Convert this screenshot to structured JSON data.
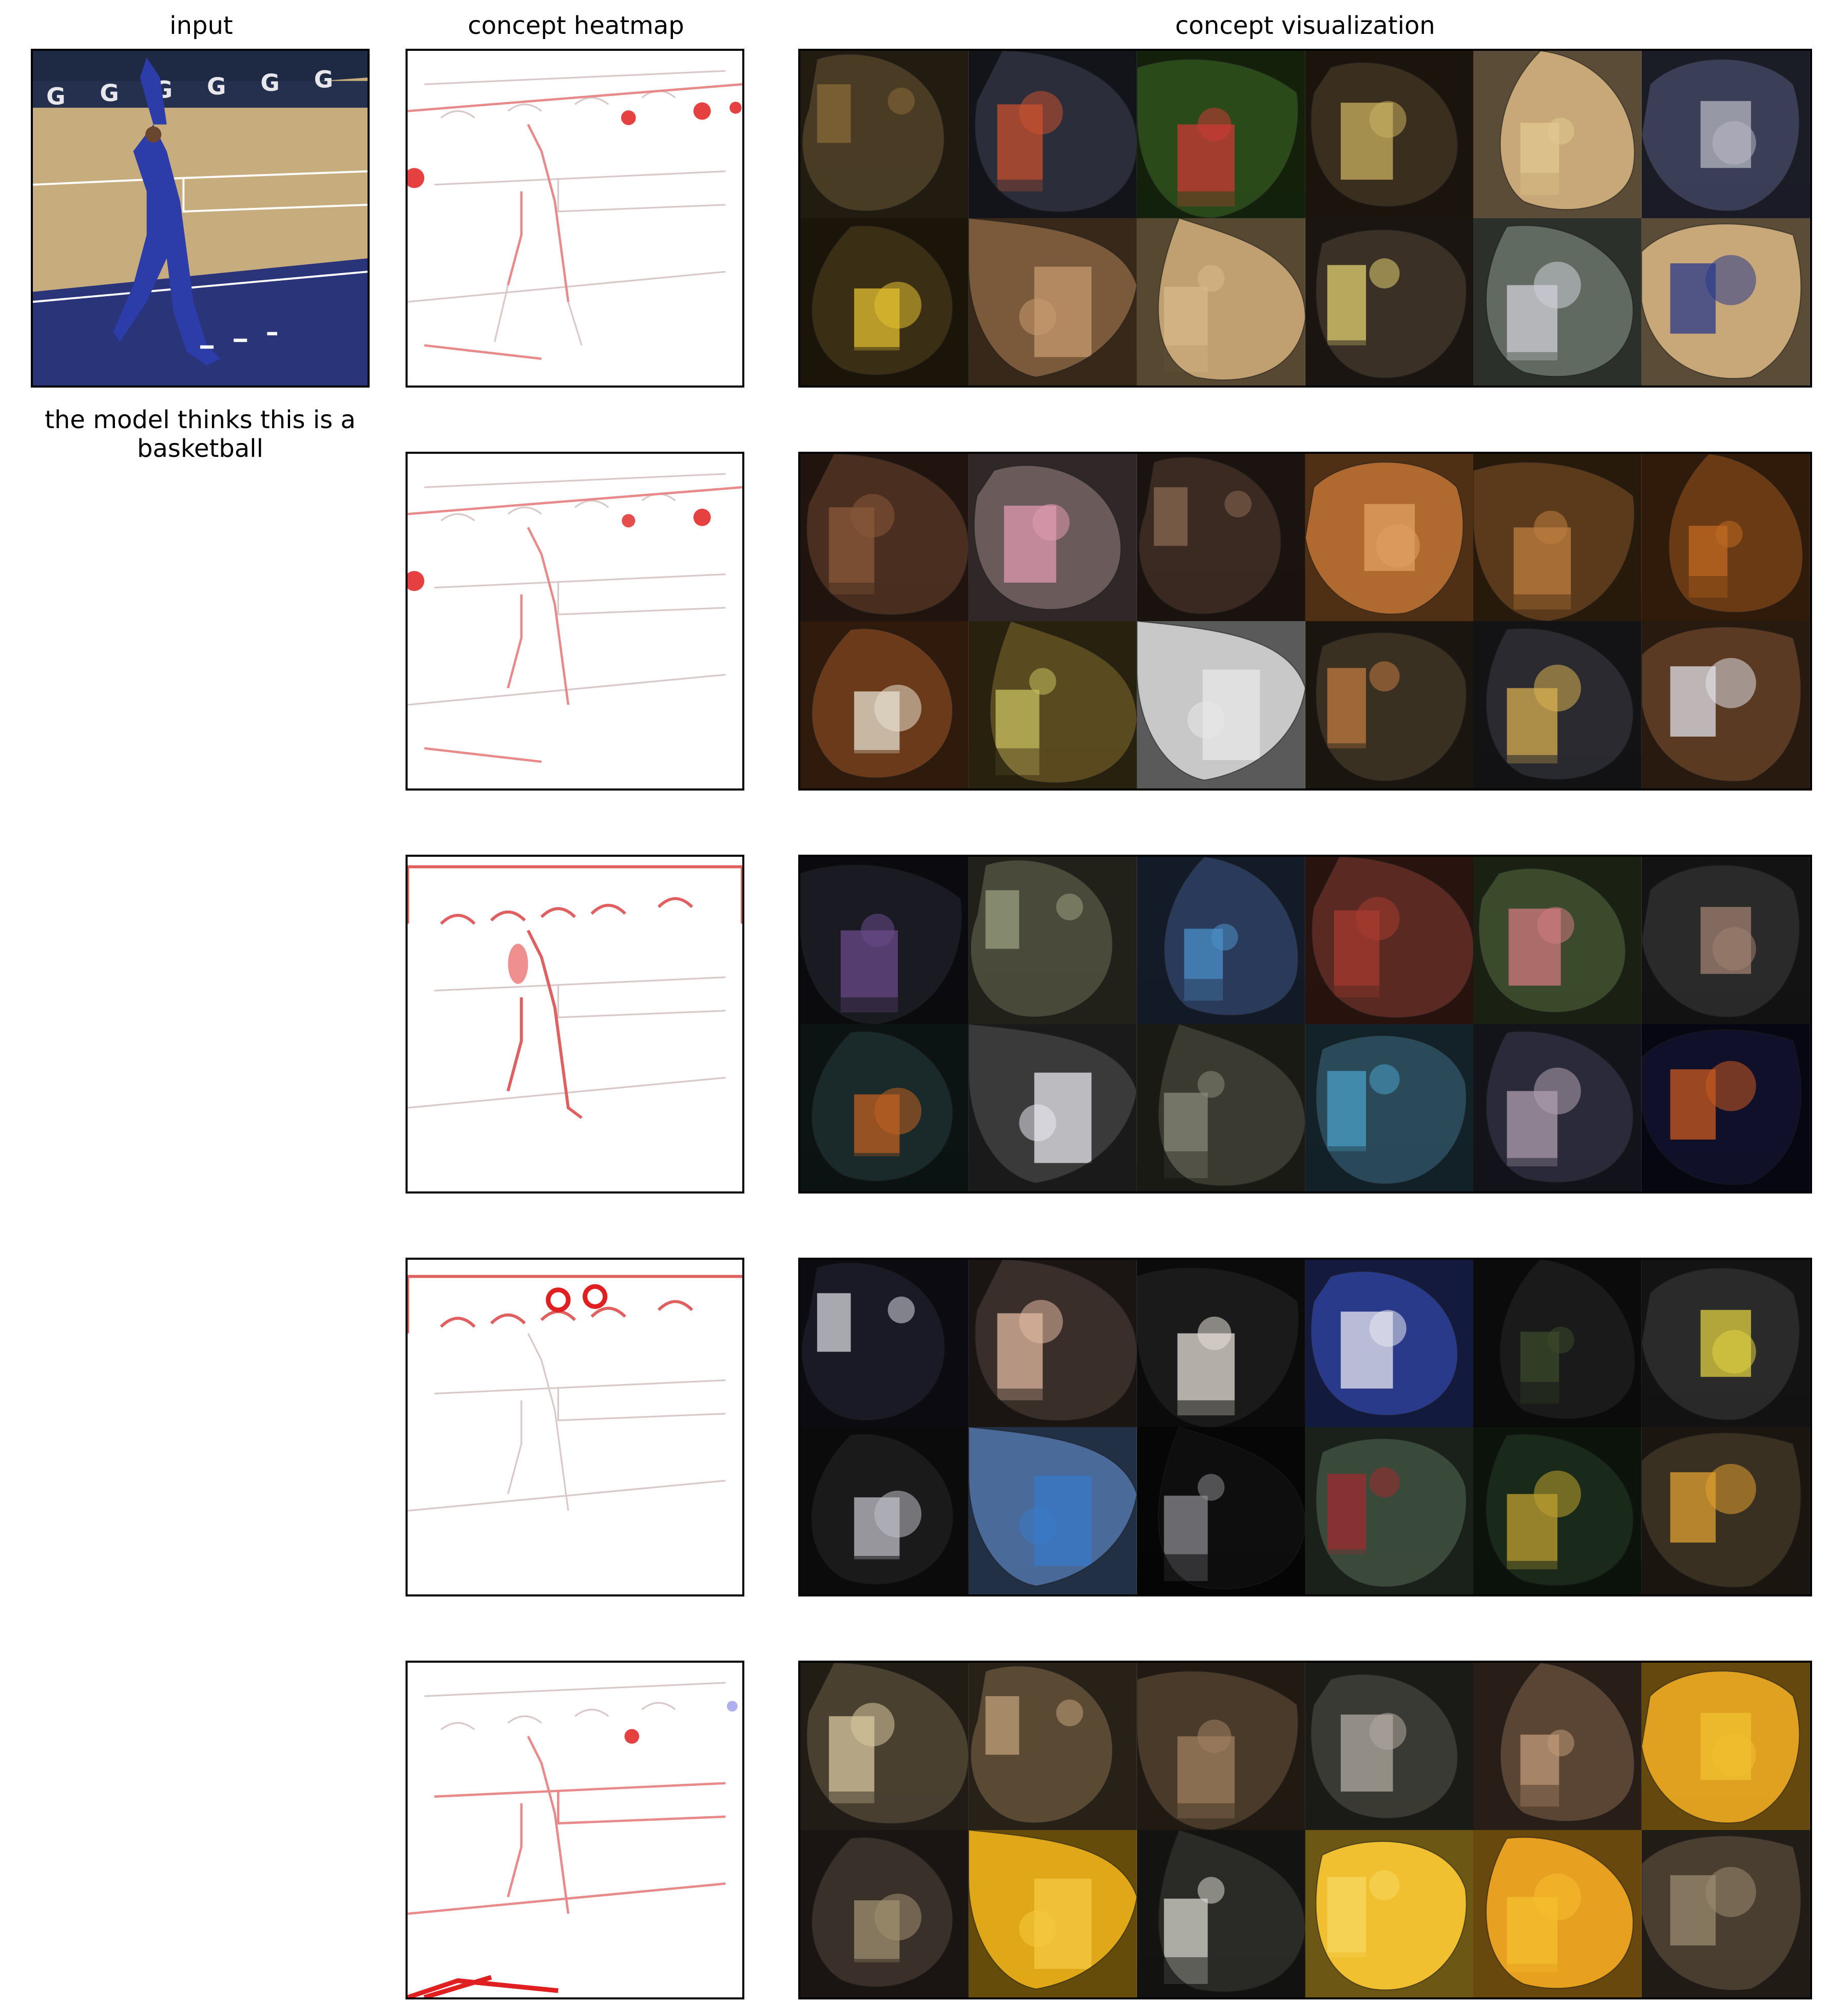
{
  "titles": {
    "input": "input",
    "heatmap": "concept heatmap",
    "visualization": "concept visualization"
  },
  "prediction_caption": "the model thinks this is a basketball",
  "heatmap_color": "#e02020",
  "concept_rows": [
    {
      "tiles": [
        {
          "bg": "#4a3c24",
          "fg": "#8a6a3a",
          "ov": 0
        },
        {
          "bg": "#2b2e3a",
          "fg": "#c8502f",
          "ov": 1
        },
        {
          "bg": "#2a4a1a",
          "fg": "#cc3a36",
          "ov": 2
        },
        {
          "bg": "#3a2e1e",
          "fg": "#c9b060",
          "ov": 3
        },
        {
          "bg": "#c8a878",
          "fg": "#e2c890",
          "ov": 4
        },
        {
          "bg": "#3a3e56",
          "fg": "#b7b7c2",
          "ov": 5
        },
        {
          "bg": "#3a2e14",
          "fg": "#e3c030",
          "ov": 6
        },
        {
          "bg": "#7a5a3a",
          "fg": "#c79a70",
          "ov": 7
        },
        {
          "bg": "#c0a070",
          "fg": "#d8b88a",
          "ov": 8
        },
        {
          "bg": "#3a3026",
          "fg": "#e0d070",
          "ov": 9
        },
        {
          "bg": "#606a60",
          "fg": "#d0d0d8",
          "ov": 10
        },
        {
          "bg": "#c8a878",
          "fg": "#2a3a8a",
          "ov": 11
        }
      ]
    },
    {
      "tiles": [
        {
          "bg": "#4a2e20",
          "fg": "#8a5a3a",
          "ov": 1
        },
        {
          "bg": "#6a5a5a",
          "fg": "#e09ab0",
          "ov": 3
        },
        {
          "bg": "#3a2a22",
          "fg": "#8a6a50",
          "ov": 0
        },
        {
          "bg": "#b06a30",
          "fg": "#e0a060",
          "ov": 5
        },
        {
          "bg": "#5a3a1a",
          "fg": "#c08040",
          "ov": 2
        },
        {
          "bg": "#6a3a14",
          "fg": "#c06a20",
          "ov": 4
        },
        {
          "bg": "#6a3a1a",
          "fg": "#e8e2d0",
          "ov": 6
        },
        {
          "bg": "#5a4a20",
          "fg": "#c8c060",
          "ov": 8
        },
        {
          "bg": "#c8c8c8",
          "fg": "#e8e8ea",
          "ov": 7
        },
        {
          "bg": "#3a3022",
          "fg": "#c07a40",
          "ov": 9
        },
        {
          "bg": "#2a2a30",
          "fg": "#d8b050",
          "ov": 10
        },
        {
          "bg": "#5a3a22",
          "fg": "#e0e0e8",
          "ov": 11
        }
      ]
    },
    {
      "tiles": [
        {
          "bg": "#1a1a22",
          "fg": "#6a4a8a",
          "ov": 2
        },
        {
          "bg": "#4a4a3a",
          "fg": "#9aa080",
          "ov": 0
        },
        {
          "bg": "#2a3a5a",
          "fg": "#4a90c8",
          "ov": 4
        },
        {
          "bg": "#5a2a22",
          "fg": "#a83a30",
          "ov": 1
        },
        {
          "bg": "#3a4a2a",
          "fg": "#d07a80",
          "ov": 3
        },
        {
          "bg": "#2a2a2a",
          "fg": "#a08070",
          "ov": 5
        },
        {
          "bg": "#1a2a2a",
          "fg": "#c06020",
          "ov": 6
        },
        {
          "bg": "#3a3a3a",
          "fg": "#e8e8ee",
          "ov": 7
        },
        {
          "bg": "#3a3a30",
          "fg": "#8a8a7a",
          "ov": 8
        },
        {
          "bg": "#2a4a5a",
          "fg": "#4aa0c8",
          "ov": 9
        },
        {
          "bg": "#2a2a3a",
          "fg": "#b0a0b0",
          "ov": 10
        },
        {
          "bg": "#10102a",
          "fg": "#c85a20",
          "ov": 11
        }
      ]
    },
    {
      "tiles": [
        {
          "bg": "#1a1a26",
          "fg": "#d8d8e0",
          "ov": 0
        },
        {
          "bg": "#3a2e2a",
          "fg": "#e0b8a0",
          "ov": 1
        },
        {
          "bg": "#1a1a1a",
          "fg": "#e8e0d8",
          "ov": 2
        },
        {
          "bg": "#2a3a8a",
          "fg": "#e8e8f0",
          "ov": 3
        },
        {
          "bg": "#1a1a1a",
          "fg": "#3a4a2a",
          "ov": 4
        },
        {
          "bg": "#2a2a2a",
          "fg": "#e0d040",
          "ov": 5
        },
        {
          "bg": "#1a1a1a",
          "fg": "#c0c0c8",
          "ov": 6
        },
        {
          "bg": "#4a6a9a",
          "fg": "#3a7ac8",
          "ov": 7
        },
        {
          "bg": "#0e0e0e",
          "fg": "#8a8a90",
          "ov": 8
        },
        {
          "bg": "#3a4a3a",
          "fg": "#a02a30",
          "ov": 9
        },
        {
          "bg": "#1a2a1a",
          "fg": "#c0a030",
          "ov": 10
        },
        {
          "bg": "#3a3022",
          "fg": "#e0a030",
          "ov": 11
        }
      ]
    },
    {
      "tiles": [
        {
          "bg": "#4a4030",
          "fg": "#d8c8a0",
          "ov": 1
        },
        {
          "bg": "#5a4a34",
          "fg": "#c0a078",
          "ov": 0
        },
        {
          "bg": "#4a3a2a",
          "fg": "#a08060",
          "ov": 2
        },
        {
          "bg": "#3a3a34",
          "fg": "#b0aaa0",
          "ov": 3
        },
        {
          "bg": "#5a4434",
          "fg": "#c09a78",
          "ov": 4
        },
        {
          "bg": "#e0a020",
          "fg": "#f0c030",
          "ov": 5
        },
        {
          "bg": "#3a302a",
          "fg": "#a09070",
          "ov": 6
        },
        {
          "bg": "#e0a818",
          "fg": "#f5c840",
          "ov": 7
        },
        {
          "bg": "#2a2a26",
          "fg": "#d8d8d0",
          "ov": 8
        },
        {
          "bg": "#f0c030",
          "fg": "#f8d860",
          "ov": 9
        },
        {
          "bg": "#e8a020",
          "fg": "#f5c030",
          "ov": 10
        },
        {
          "bg": "#4a3e30",
          "fg": "#9a8a70",
          "ov": 11
        }
      ]
    }
  ]
}
